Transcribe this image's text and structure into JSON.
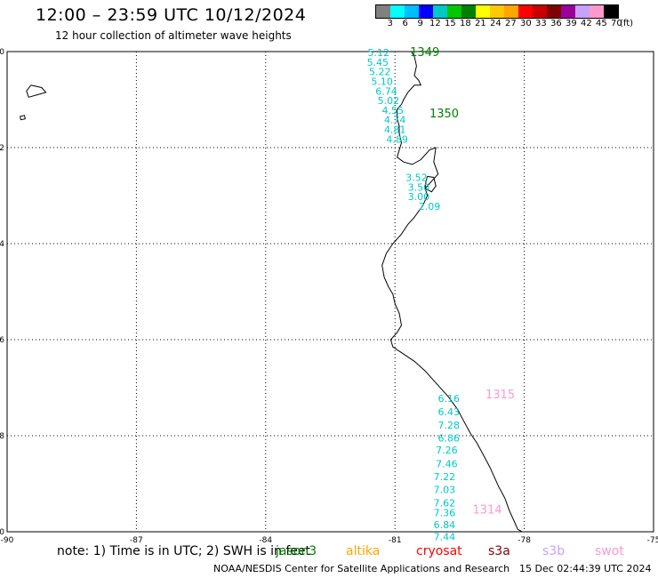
{
  "header": {
    "title": "12:00 – 23:59 UTC 10/12/2024",
    "subtitle": "12 hour collection of altimeter wave heights"
  },
  "colorbar": {
    "colors": [
      "#808080",
      "#00ffff",
      "#00bfff",
      "#0000ff",
      "#00c8c8",
      "#00c800",
      "#008000",
      "#ffff00",
      "#ffc800",
      "#ffa500",
      "#ff0000",
      "#c80000",
      "#800000",
      "#9b009b",
      "#c8a0ff",
      "#ff99cc",
      "#000000"
    ],
    "labels": [
      "3",
      "6",
      "9",
      "12",
      "15",
      "18",
      "21",
      "24",
      "27",
      "30",
      "33",
      "36",
      "39",
      "42",
      "45",
      "70",
      "(ft)"
    ]
  },
  "map": {
    "lon_range": [
      -90,
      -75
    ],
    "lat_range": [
      -10,
      0
    ],
    "lon_ticks": [
      "-90",
      "-87",
      "-84",
      "-81",
      "-78",
      "-75"
    ],
    "lat_ticks": [
      "0",
      "-2",
      "-4",
      "-6",
      "-8",
      "-10"
    ]
  },
  "tracks": [
    {
      "id": "1349",
      "color": "#008000",
      "label_color": "#008000",
      "label_lon": -80.65,
      "label_lat": -0.02,
      "points": [
        {
          "lon": -81.38,
          "lat": -0.02,
          "v": "5.12"
        },
        {
          "lon": -81.4,
          "lat": -0.22,
          "v": "5.45"
        },
        {
          "lon": -81.35,
          "lat": -0.42,
          "v": "5.22"
        },
        {
          "lon": -81.3,
          "lat": -0.62,
          "v": "5.10"
        },
        {
          "lon": -81.2,
          "lat": -0.82,
          "v": "6.74"
        },
        {
          "lon": -81.15,
          "lat": -1.02,
          "v": "5.02"
        },
        {
          "lon": -81.05,
          "lat": -1.22,
          "v": "4.55"
        },
        {
          "lon": -81.0,
          "lat": -1.42,
          "v": "4.74"
        },
        {
          "lon": -81.0,
          "lat": -1.62,
          "v": "4.81"
        },
        {
          "lon": -80.95,
          "lat": -1.82,
          "v": "4.89"
        }
      ]
    },
    {
      "id": "1350",
      "color": "#008000",
      "label_color": "#008000",
      "label_lon": -80.2,
      "label_lat": -1.3,
      "points": [
        {
          "lon": -80.5,
          "lat": -2.62,
          "v": "3.52"
        },
        {
          "lon": -80.45,
          "lat": -2.82,
          "v": "3.50"
        },
        {
          "lon": -80.45,
          "lat": -3.02,
          "v": "3.00"
        },
        {
          "lon": -80.2,
          "lat": -3.22,
          "v": "2.09"
        }
      ]
    },
    {
      "id": "1315",
      "color": "#ff99cc",
      "label_color": "#ff99cc",
      "label_lon": -78.9,
      "label_lat": -7.15,
      "points": [
        {
          "lon": -79.75,
          "lat": -7.22,
          "v": "6.16"
        },
        {
          "lon": -79.75,
          "lat": -7.5,
          "v": "6.43"
        },
        {
          "lon": -79.75,
          "lat": -7.78,
          "v": "7.28"
        },
        {
          "lon": -79.75,
          "lat": -8.05,
          "v": "6.86"
        },
        {
          "lon": -79.8,
          "lat": -8.3,
          "v": "7.26"
        }
      ]
    },
    {
      "id": "1314",
      "color": "#ff99cc",
      "label_color": "#ff99cc",
      "label_lon": -79.2,
      "label_lat": -9.55,
      "points": [
        {
          "lon": -79.8,
          "lat": -8.58,
          "v": "7.46"
        },
        {
          "lon": -79.85,
          "lat": -8.85,
          "v": "7.22"
        },
        {
          "lon": -79.85,
          "lat": -9.12,
          "v": "7.03"
        },
        {
          "lon": -79.85,
          "lat": -9.4,
          "v": "7.62"
        },
        {
          "lon": -79.85,
          "lat": -9.6,
          "v": "7.36"
        },
        {
          "lon": -79.85,
          "lat": -9.85,
          "v": "6.84"
        },
        {
          "lon": -79.85,
          "lat": -10.1,
          "v": "7.44"
        }
      ]
    }
  ],
  "legend": {
    "note": "note: 1) Time is in UTC; 2) SWH is in feet",
    "satellites": [
      {
        "name": "jason3",
        "color": "#008000"
      },
      {
        "name": "altika",
        "color": "#ffa500"
      },
      {
        "name": "cryosat",
        "color": "#ff0000"
      },
      {
        "name": "s3a",
        "color": "#800000"
      },
      {
        "name": "s3b",
        "color": "#c8a0ff"
      },
      {
        "name": "swot",
        "color": "#ff99cc"
      }
    ]
  },
  "footer": {
    "credit": "NOAA/NESDIS Center for Satellite Applications and Research",
    "timestamp": "15 Dec 02:44:39 UTC 2024"
  }
}
